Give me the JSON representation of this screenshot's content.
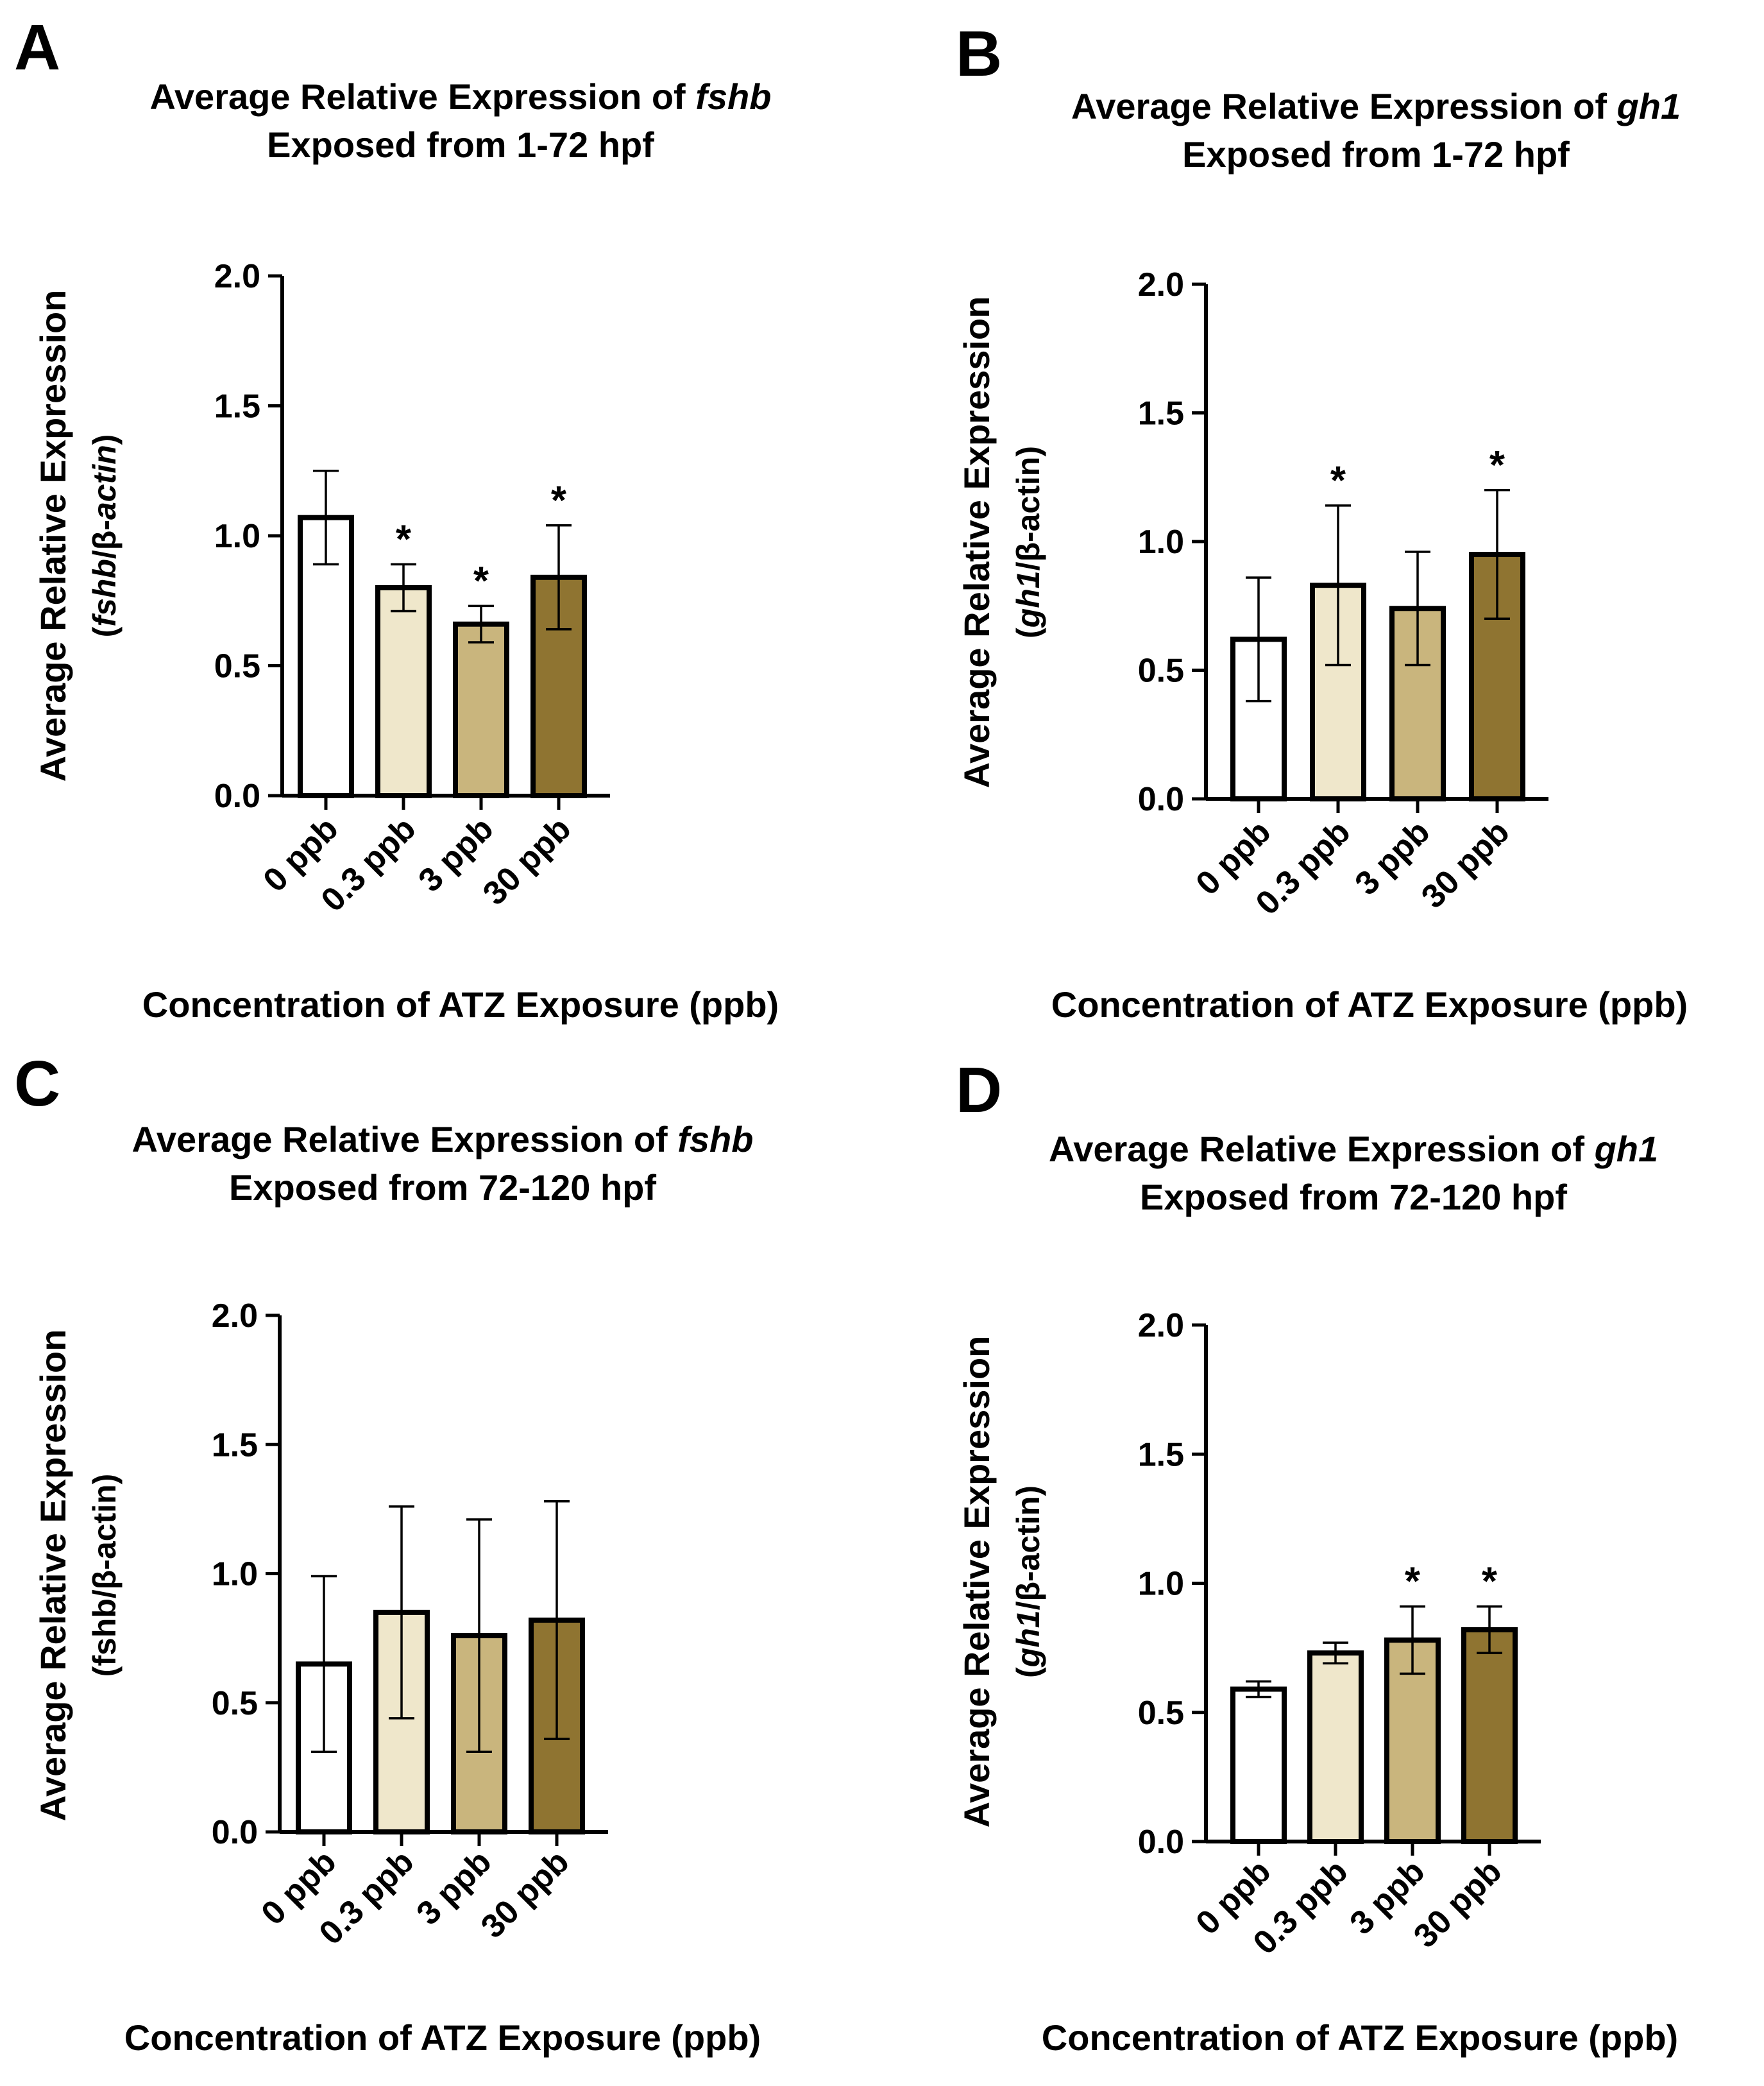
{
  "figure": {
    "colors": {
      "axis": "#000000",
      "bar_stroke": "#000000",
      "fills": [
        "#ffffff",
        "#efe7cb",
        "#c9b57d",
        "#8f7431"
      ]
    }
  },
  "chart_data": [
    {
      "type": "bar",
      "panel_label": "A",
      "title_line1_prefix": "Average Relative Expression of ",
      "title_line1_gene": "fshb",
      "title_line2": "Exposed from 1-72 hpf",
      "ylabel_line1": "Average Relative Expression",
      "ylabel_open": "(",
      "ylabel_gene": "fshb",
      "ylabel_gene_italic": true,
      "ylabel_ref": "/β-",
      "ylabel_ref_gene": "actin",
      "ylabel_ref_italic": true,
      "ylabel_close": ")",
      "xlabel": "Concentration of ATZ Exposure (ppb)",
      "categories": [
        "0 ppb",
        "0.3 ppb",
        "3 ppb",
        "30 ppb"
      ],
      "values": [
        1.07,
        0.8,
        0.66,
        0.84
      ],
      "errors": [
        0.18,
        0.09,
        0.07,
        0.2
      ],
      "significance": [
        "",
        "*",
        "*",
        "*"
      ],
      "ylim": [
        0,
        2.0
      ],
      "yticks": [
        "0.0",
        "0.5",
        "1.0",
        "1.5",
        "2.0"
      ]
    },
    {
      "type": "bar",
      "panel_label": "B",
      "title_line1_prefix": "Average Relative Expression of ",
      "title_line1_gene": "gh1",
      "title_line2": "Exposed from 1-72 hpf",
      "ylabel_line1": "Average Relative Expression",
      "ylabel_open": "(",
      "ylabel_gene": "gh1",
      "ylabel_gene_italic": true,
      "ylabel_ref": "/β-",
      "ylabel_ref_gene": "actin",
      "ylabel_ref_italic": false,
      "ylabel_close": ")",
      "xlabel": "Concentration of ATZ Exposure (ppb)",
      "categories": [
        "0 ppb",
        "0.3 ppb",
        "3 ppb",
        "30 ppb"
      ],
      "values": [
        0.62,
        0.83,
        0.74,
        0.95
      ],
      "errors": [
        0.24,
        0.31,
        0.22,
        0.25
      ],
      "significance": [
        "",
        "*",
        "",
        "*"
      ],
      "ylim": [
        0,
        2.0
      ],
      "yticks": [
        "0.0",
        "0.5",
        "1.0",
        "1.5",
        "2.0"
      ]
    },
    {
      "type": "bar",
      "panel_label": "C",
      "title_line1_prefix": "Average Relative Expression of ",
      "title_line1_gene": "fshb",
      "title_line2": "Exposed from 72-120 hpf",
      "ylabel_line1": "Average Relative Expression",
      "ylabel_open": "(",
      "ylabel_gene": "fshb",
      "ylabel_gene_italic": false,
      "ylabel_ref": "/β-",
      "ylabel_ref_gene": "actin",
      "ylabel_ref_italic": false,
      "ylabel_close": ")",
      "xlabel": "Concentration of ATZ Exposure (ppb)",
      "categories": [
        "0 ppb",
        "0.3 ppb",
        "3 ppb",
        "30 ppb"
      ],
      "values": [
        0.65,
        0.85,
        0.76,
        0.82
      ],
      "errors": [
        0.34,
        0.41,
        0.45,
        0.46
      ],
      "significance": [
        "",
        "",
        "",
        ""
      ],
      "ylim": [
        0,
        2.0
      ],
      "yticks": [
        "0.0",
        "0.5",
        "1.0",
        "1.5",
        "2.0"
      ]
    },
    {
      "type": "bar",
      "panel_label": "D",
      "title_line1_prefix": "Average Relative Expression of ",
      "title_line1_gene": "gh1",
      "title_line2": "Exposed from 72-120 hpf",
      "ylabel_line1": "Average Relative Expression",
      "ylabel_open": "(",
      "ylabel_gene": "gh1",
      "ylabel_gene_italic": true,
      "ylabel_ref": "/β-",
      "ylabel_ref_gene": "actin",
      "ylabel_ref_italic": false,
      "ylabel_close": ")",
      "xlabel": "Concentration of ATZ Exposure (ppb)",
      "categories": [
        "0 ppb",
        "0.3 ppb",
        "3 ppb",
        "30 ppb"
      ],
      "values": [
        0.59,
        0.73,
        0.78,
        0.82
      ],
      "errors": [
        0.03,
        0.04,
        0.13,
        0.09
      ],
      "significance": [
        "",
        "",
        "*",
        "*"
      ],
      "ylim": [
        0,
        2.0
      ],
      "yticks": [
        "0.0",
        "0.5",
        "1.0",
        "1.5",
        "2.0"
      ]
    }
  ]
}
